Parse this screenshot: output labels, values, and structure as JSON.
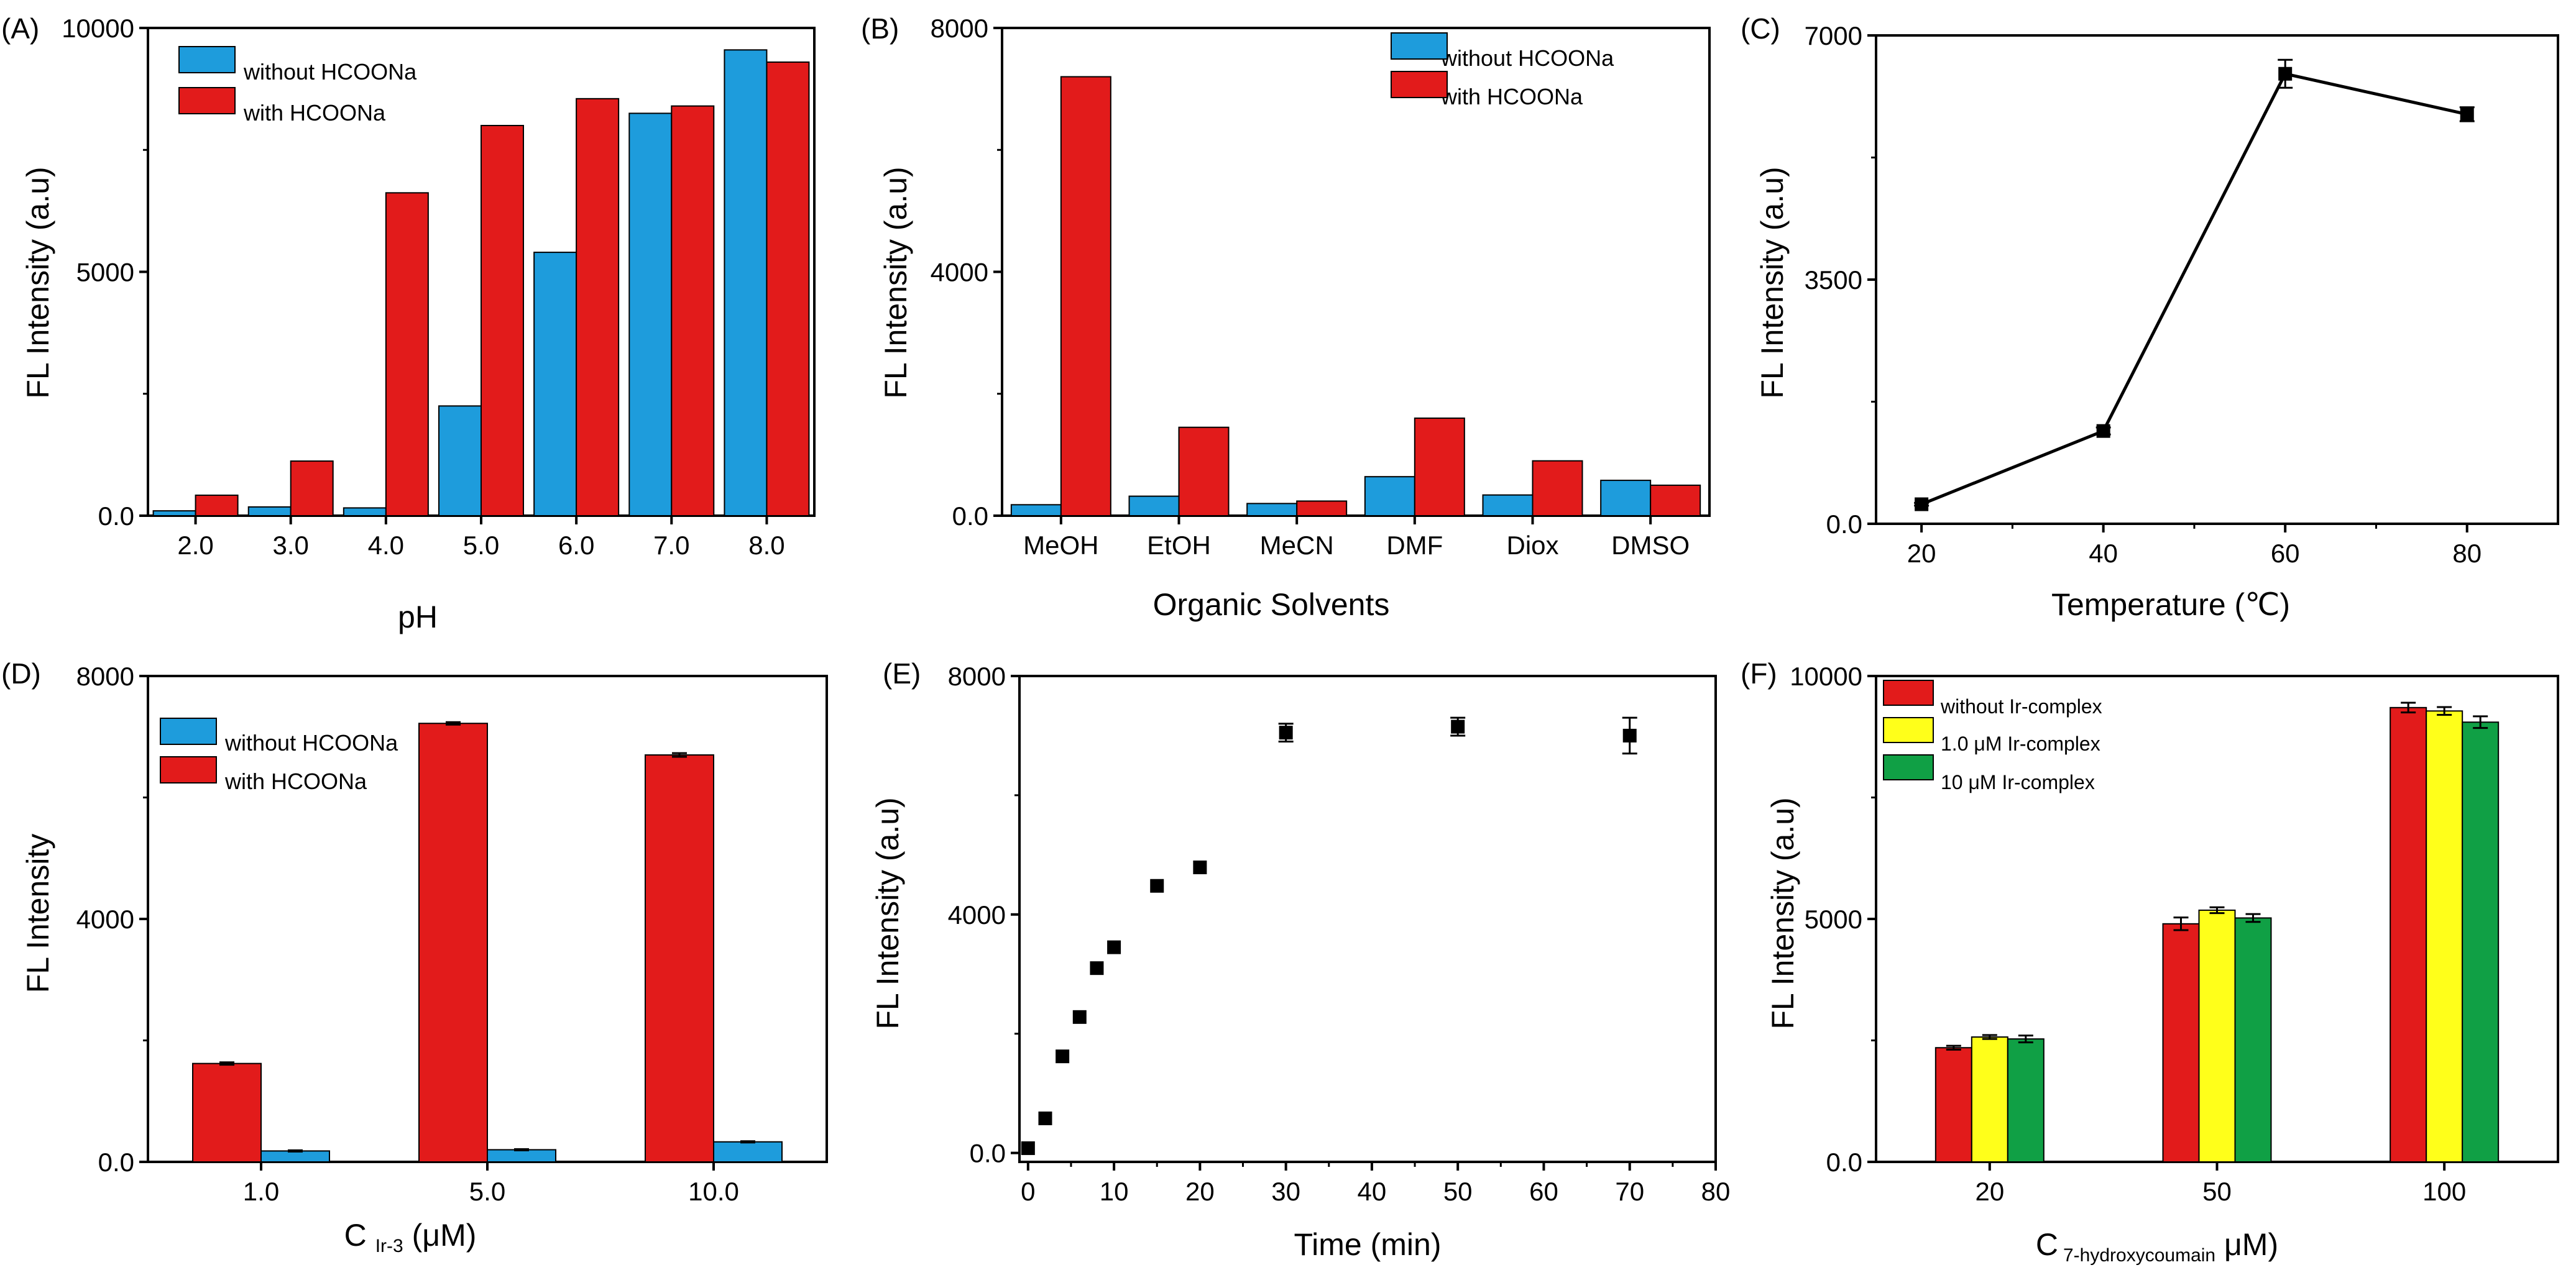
{
  "colors": {
    "blue": "#1e9cdc",
    "red": "#e21b1b",
    "yellow": "#ffff1a",
    "green": "#10a045",
    "axis": "#000000"
  },
  "chart_data": [
    {
      "id": "A",
      "panel_label": "(A)",
      "type": "bar",
      "title": "",
      "xlabel": "pH",
      "ylabel": "FL Intensity (a.u)",
      "ylim": [
        0,
        10000
      ],
      "y_ticks": [
        "0.0",
        "5000",
        "10000"
      ],
      "y_tick_values": [
        0,
        5000,
        10000
      ],
      "categories": [
        "2.0",
        "3.0",
        "4.0",
        "5.0",
        "6.0",
        "7.0",
        "8.0"
      ],
      "series": [
        {
          "name": "without HCOONa",
          "color": "#1e9cdc",
          "values": [
            100,
            180,
            160,
            2250,
            5400,
            8250,
            9550
          ]
        },
        {
          "name": "with HCOONa",
          "color": "#e21b1b",
          "values": [
            420,
            1120,
            6620,
            8000,
            8550,
            8400,
            9300
          ]
        }
      ],
      "legend": {
        "position": "top-left",
        "labels": [
          "without HCOONa",
          " with HCOONa"
        ]
      }
    },
    {
      "id": "B",
      "panel_label": "(B)",
      "type": "bar",
      "title": "",
      "xlabel": "Organic Solvents",
      "ylabel": "FL Intensity (a.u)",
      "ylim": [
        0,
        8000
      ],
      "y_ticks": [
        "0.0",
        "4000",
        "8000"
      ],
      "y_tick_values": [
        0,
        4000,
        8000
      ],
      "categories": [
        "MeOH",
        "EtOH",
        "MeCN",
        "DMF",
        "Diox",
        "DMSO"
      ],
      "series": [
        {
          "name": "without HCOONa",
          "color": "#1e9cdc",
          "values": [
            180,
            320,
            200,
            640,
            340,
            580
          ]
        },
        {
          "name": "with HCOONa",
          "color": "#e21b1b",
          "values": [
            7200,
            1450,
            240,
            1600,
            900,
            500
          ]
        }
      ],
      "legend": {
        "position": "top-right",
        "labels": [
          "without HCOONa",
          " with HCOONa"
        ]
      }
    },
    {
      "id": "C",
      "panel_label": "(C)",
      "type": "line",
      "title": "",
      "xlabel": "Temperature (℃)",
      "ylabel": "FL Intensity (a.u)",
      "xlim": [
        15,
        90
      ],
      "ylim": [
        0,
        7000
      ],
      "x_ticks": [
        "20",
        "40",
        "60",
        "80"
      ],
      "x_tick_values": [
        20,
        40,
        60,
        80
      ],
      "y_ticks": [
        "0.0",
        "3500",
        "7000"
      ],
      "y_tick_values": [
        0,
        3500,
        7000
      ],
      "series": [
        {
          "name": "FL",
          "color": "#000000",
          "x": [
            20,
            40,
            60,
            80
          ],
          "y": [
            280,
            1330,
            6450,
            5870
          ],
          "err": [
            20,
            50,
            200,
            100
          ]
        }
      ]
    },
    {
      "id": "D",
      "panel_label": "(D)",
      "type": "bar",
      "title": "",
      "xlabel": "C Ir-3 (μM)",
      "xlabel_main": "C",
      "xlabel_sub": "Ir-3",
      "xlabel_tail": " (μM)",
      "ylabel": "FL Intensity",
      "ylim": [
        0,
        8000
      ],
      "y_ticks": [
        "0.0",
        "4000",
        "8000"
      ],
      "y_tick_values": [
        0,
        4000,
        8000
      ],
      "categories": [
        "1.0",
        "5.0",
        "10.0"
      ],
      "series": [
        {
          "name": "with HCOONa",
          "color": "#e21b1b",
          "values": [
            1620,
            7220,
            6700
          ],
          "err": [
            20,
            20,
            30
          ]
        },
        {
          "name": "without HCOONa",
          "color": "#1e9cdc",
          "values": [
            180,
            200,
            330
          ],
          "err": [
            10,
            10,
            10
          ]
        }
      ],
      "legend": {
        "position": "top-left",
        "labels": [
          "without HCOONa",
          " with HCOONa"
        ]
      }
    },
    {
      "id": "E",
      "panel_label": "(E)",
      "type": "scatter",
      "title": "",
      "xlabel": "Time (min)",
      "ylabel": "FL Intensity (a.u)",
      "xlim": [
        -1,
        80
      ],
      "ylim": [
        -150,
        8000
      ],
      "x_ticks": [
        "0",
        "10",
        "20",
        "30",
        "40",
        "50",
        "60",
        "70",
        "80"
      ],
      "x_tick_values": [
        0,
        10,
        20,
        30,
        40,
        50,
        60,
        70,
        80
      ],
      "y_ticks": [
        "0.0",
        "4000",
        "8000"
      ],
      "y_tick_values": [
        0,
        4000,
        8000
      ],
      "series": [
        {
          "name": "FL",
          "color": "#000000",
          "x": [
            0,
            2,
            4,
            6,
            8,
            10,
            15,
            20,
            30,
            50,
            70
          ],
          "y": [
            80,
            580,
            1620,
            2280,
            3100,
            3450,
            4480,
            4790,
            7050,
            7150,
            7000
          ],
          "err": [
            0,
            0,
            0,
            0,
            0,
            0,
            0,
            0,
            150,
            150,
            300
          ]
        }
      ]
    },
    {
      "id": "F",
      "panel_label": "(F)",
      "type": "bar",
      "title": "",
      "xlabel": "C 7-hydroxycoumain (μM)",
      "xlabel_main": "C",
      "xlabel_sub": "7-hydroxycoumain",
      "xlabel_tail": " μM)",
      "ylabel": "FL Intensity (a.u)",
      "ylim": [
        0,
        10000
      ],
      "y_ticks": [
        "0.0",
        "5000",
        "10000"
      ],
      "y_tick_values": [
        0,
        5000,
        10000
      ],
      "categories": [
        "20",
        "50",
        "100"
      ],
      "series": [
        {
          "name": "without Ir-complex",
          "color": "#e21b1b",
          "values": [
            2350,
            4900,
            9350
          ],
          "err": [
            40,
            130,
            100
          ]
        },
        {
          "name": "1.0 μM Ir-complex",
          "color": "#ffff1a",
          "values": [
            2570,
            5180,
            9280
          ],
          "err": [
            40,
            60,
            80
          ]
        },
        {
          "name": "10 μM Ir-complex",
          "color": "#10a045",
          "values": [
            2530,
            5020,
            9050
          ],
          "err": [
            70,
            80,
            120
          ]
        }
      ],
      "legend": {
        "position": "top-left",
        "labels": [
          "without Ir-complex",
          "1.0 μM Ir-complex",
          "10 μM Ir-complex"
        ]
      }
    }
  ]
}
